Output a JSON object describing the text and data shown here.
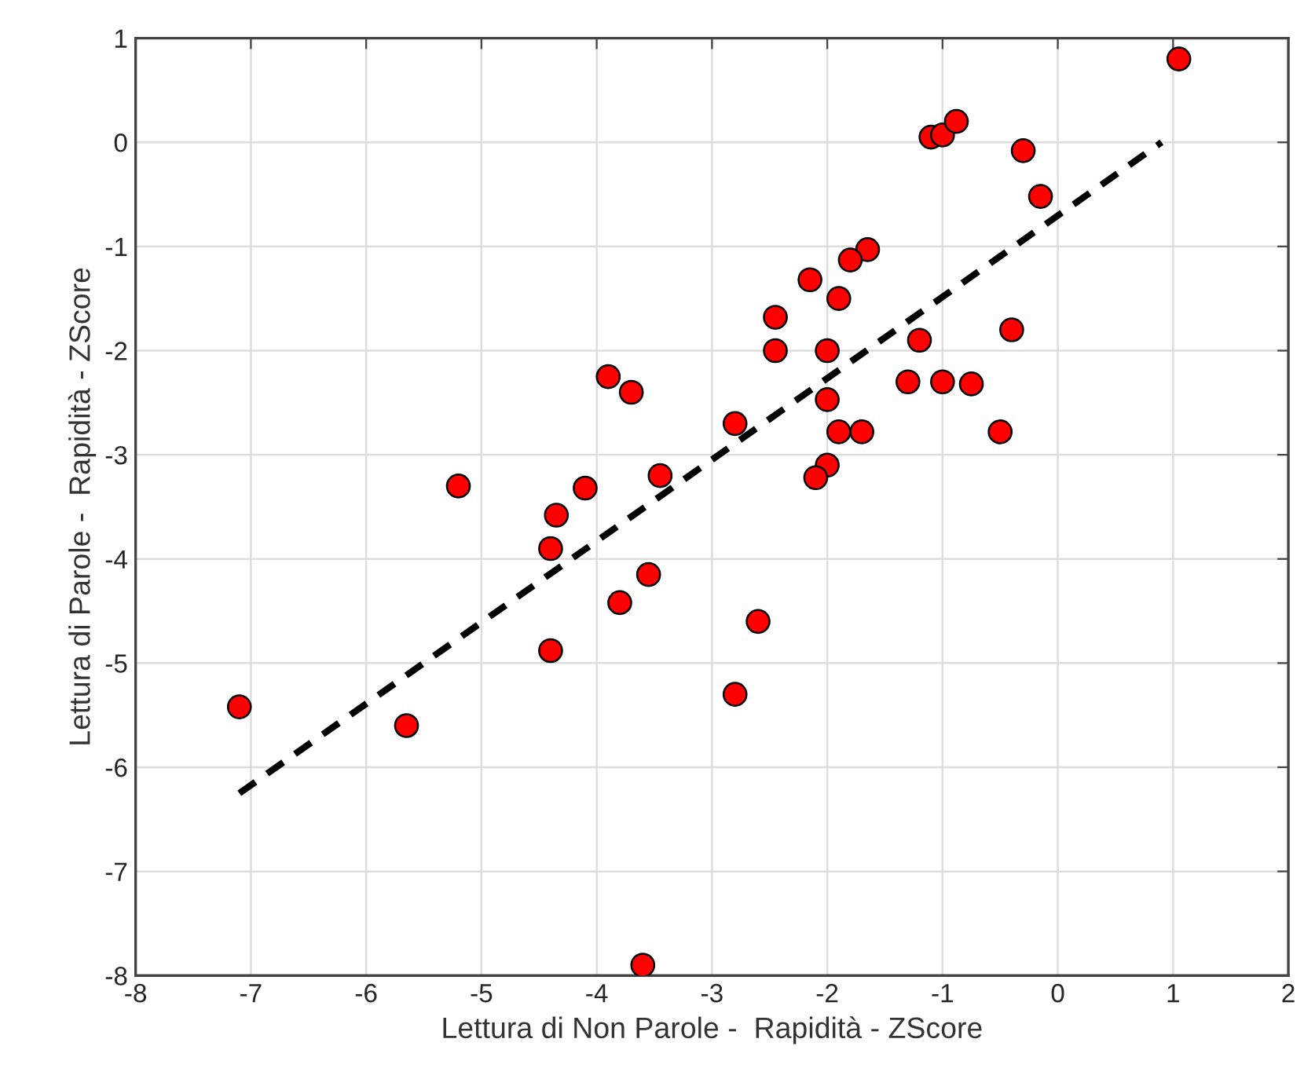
{
  "chart_data": {
    "type": "scatter",
    "xlabel": "Lettura di Non Parole -  Rapidità - ZScore",
    "ylabel": "Lettura di Parole -  Rapidità - ZScore",
    "xlim": [
      -8,
      2
    ],
    "xticks": [
      -8,
      -7,
      -6,
      -5,
      -4,
      -3,
      -2,
      -1,
      0,
      1,
      2
    ],
    "ylim": [
      -8,
      1
    ],
    "yticks": [
      -8,
      -7,
      -6,
      -5,
      -4,
      -3,
      -2,
      -1,
      0,
      1
    ],
    "grid": true,
    "marker": "circle",
    "series": [
      {
        "color": "#ff0000",
        "x": [
          1.05,
          -1.1,
          -1.0,
          -0.88,
          -0.3,
          -0.15,
          -1.65,
          -1.8,
          -2.15,
          -1.9,
          -2.45,
          -2.45,
          -2.0,
          -1.2,
          -0.4,
          -1.3,
          -1.0,
          -0.75,
          -2.0,
          -1.9,
          -1.7,
          -0.5,
          -2.8,
          -2.0,
          -2.1,
          -3.9,
          -3.7,
          -3.45,
          -4.1,
          -4.35,
          -5.2,
          -4.4,
          -3.55,
          -3.8,
          -2.6,
          -4.4,
          -2.8,
          -5.65,
          -7.1,
          -3.6
        ],
        "values": [
          0.8,
          0.05,
          0.07,
          0.2,
          -0.08,
          -0.52,
          -1.03,
          -1.13,
          -1.32,
          -1.5,
          -1.68,
          -2.0,
          -2.0,
          -1.9,
          -1.8,
          -2.3,
          -2.3,
          -2.32,
          -2.47,
          -2.78,
          -2.78,
          -2.78,
          -2.7,
          -3.1,
          -3.22,
          -2.25,
          -2.4,
          -3.2,
          -3.32,
          -3.58,
          -3.3,
          -3.9,
          -4.15,
          -4.42,
          -4.6,
          -4.88,
          -5.3,
          -5.6,
          -5.42,
          -7.9
        ]
      },
      {
        "type": "line",
        "color": "#000000",
        "line_style": "dashed",
        "marker": "none",
        "x": [
          -7.1,
          0.9
        ],
        "values": [
          -6.25,
          0.0
        ]
      }
    ]
  }
}
